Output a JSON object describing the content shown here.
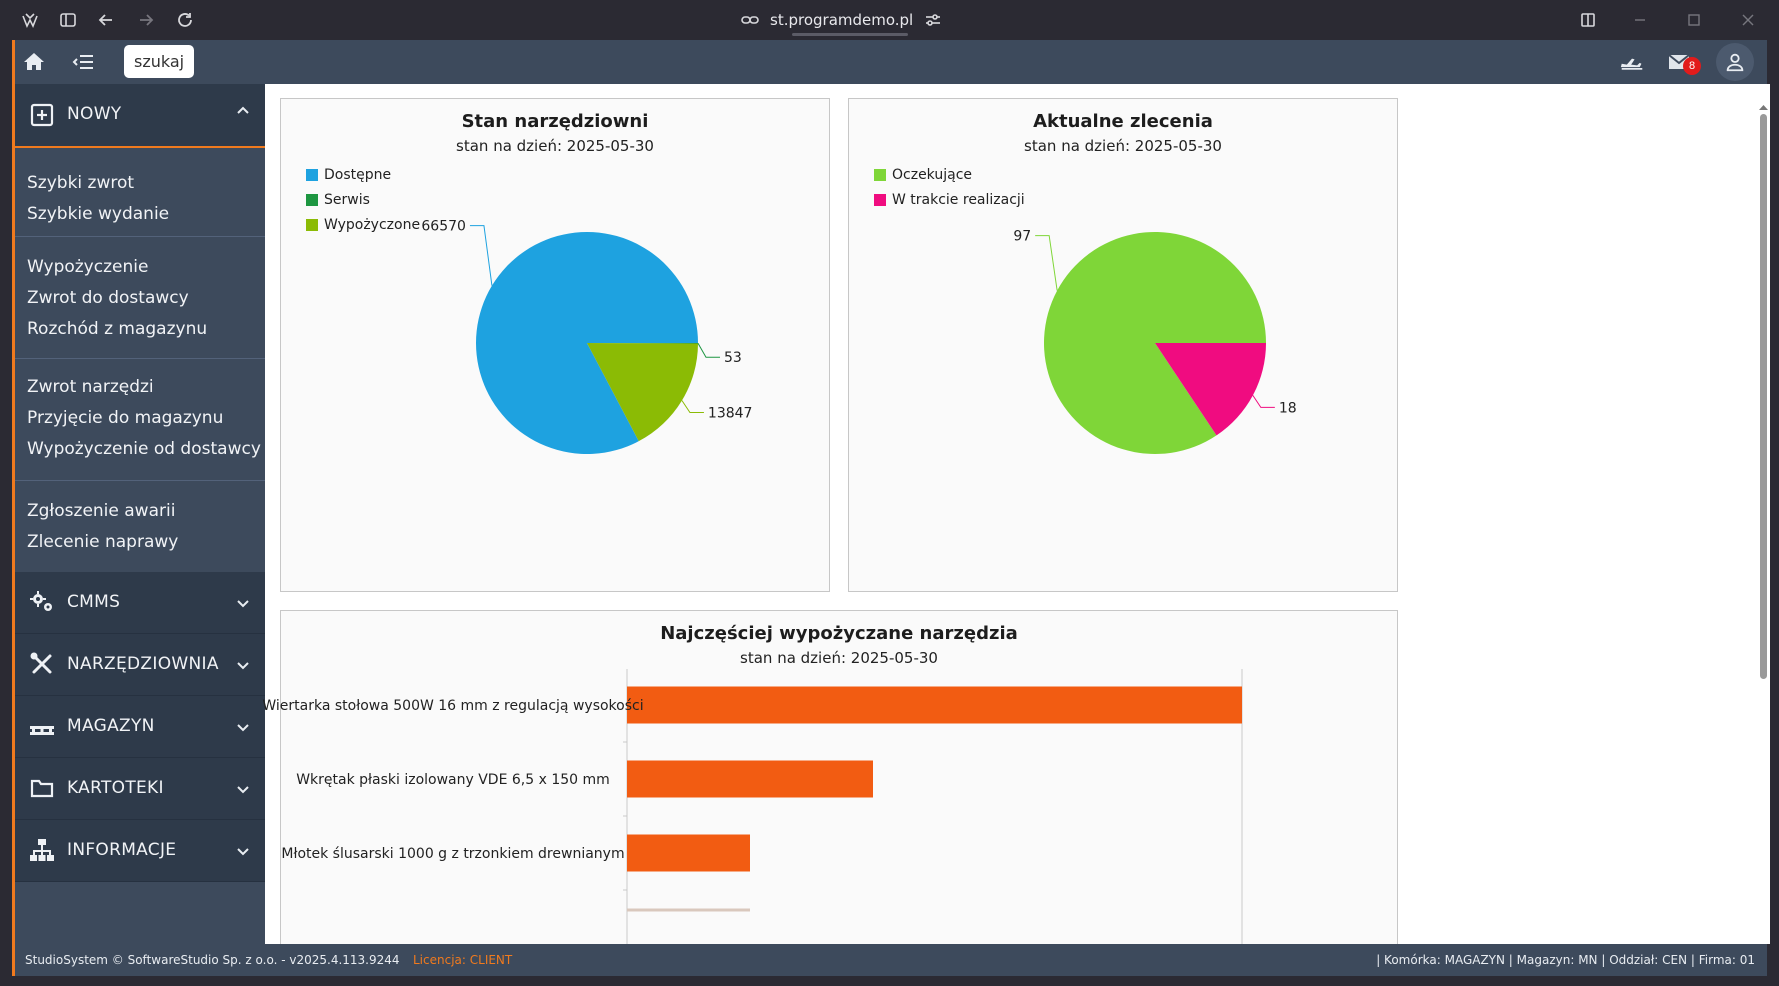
{
  "browser": {
    "url": "st.programdemo.pl"
  },
  "topbar": {
    "search_label": "szukaj",
    "mail_count": "8"
  },
  "sidebar": {
    "nowy": {
      "label": "NOWY",
      "groups": [
        [
          "Szybki zwrot",
          "Szybkie wydanie"
        ],
        [
          "Wypożyczenie",
          "Zwrot do dostawcy",
          "Rozchód z magazynu"
        ],
        [
          "Zwrot narzędzi",
          "Przyjęcie do magazynu",
          "Wypożyczenie od dostawcy"
        ],
        [
          "Zgłoszenie awarii",
          "Zlecenie naprawy"
        ]
      ]
    },
    "sections": [
      {
        "label": "CMMS",
        "icon": "gears-icon"
      },
      {
        "label": "NARZĘDZIOWNIA",
        "icon": "tools-icon"
      },
      {
        "label": "MAGAZYN",
        "icon": "pallet-icon"
      },
      {
        "label": "KARTOTEKI",
        "icon": "folder-icon"
      },
      {
        "label": "INFORMACJE",
        "icon": "sitemap-icon"
      }
    ]
  },
  "chart_data": [
    {
      "type": "pie",
      "title": "Stan narzędziowni",
      "subtitle": "stan na dzień: 2025-05-30",
      "legend_position": "top-left",
      "slices": [
        {
          "label": "Dostępne",
          "value": 66570,
          "color": "#1ea2e0"
        },
        {
          "label": "Serwis",
          "value": 53,
          "color": "#1d9641"
        },
        {
          "label": "Wypożyczone",
          "value": 13847,
          "color": "#8bbb05"
        }
      ]
    },
    {
      "type": "pie",
      "title": "Aktualne zlecenia",
      "subtitle": "stan na dzień: 2025-05-30",
      "legend_position": "top-left",
      "slices": [
        {
          "label": "Oczekujące",
          "value": 97,
          "color": "#7fd638"
        },
        {
          "label": "W trakcie realizacji",
          "value": 18,
          "color": "#f00c80"
        }
      ]
    },
    {
      "type": "bar",
      "orientation": "horizontal",
      "title": "Najczęściej wypożyczane narzędzia",
      "subtitle": "stan na dzień: 2025-05-30",
      "color": "#f25c12",
      "categories": [
        "Wiertarka stołowa 500W 16 mm z regulacją wysokości",
        "Wkrętak płaski izolowany VDE 6,5 x 150 mm",
        "Młotek ślusarski 1000 g z trzonkiem drewnianym"
      ],
      "values": [
        100,
        40,
        20
      ],
      "xlim": [
        0,
        100
      ]
    }
  ],
  "footer": {
    "copyright": "StudioSystem © SoftwareStudio Sp. z o.o. - v2025.4.113.9244",
    "license": "Licencja: CLIENT",
    "context": "| Komórka: MAGAZYN | Magazyn: MN | Oddział: CEN | Firma: 01"
  }
}
